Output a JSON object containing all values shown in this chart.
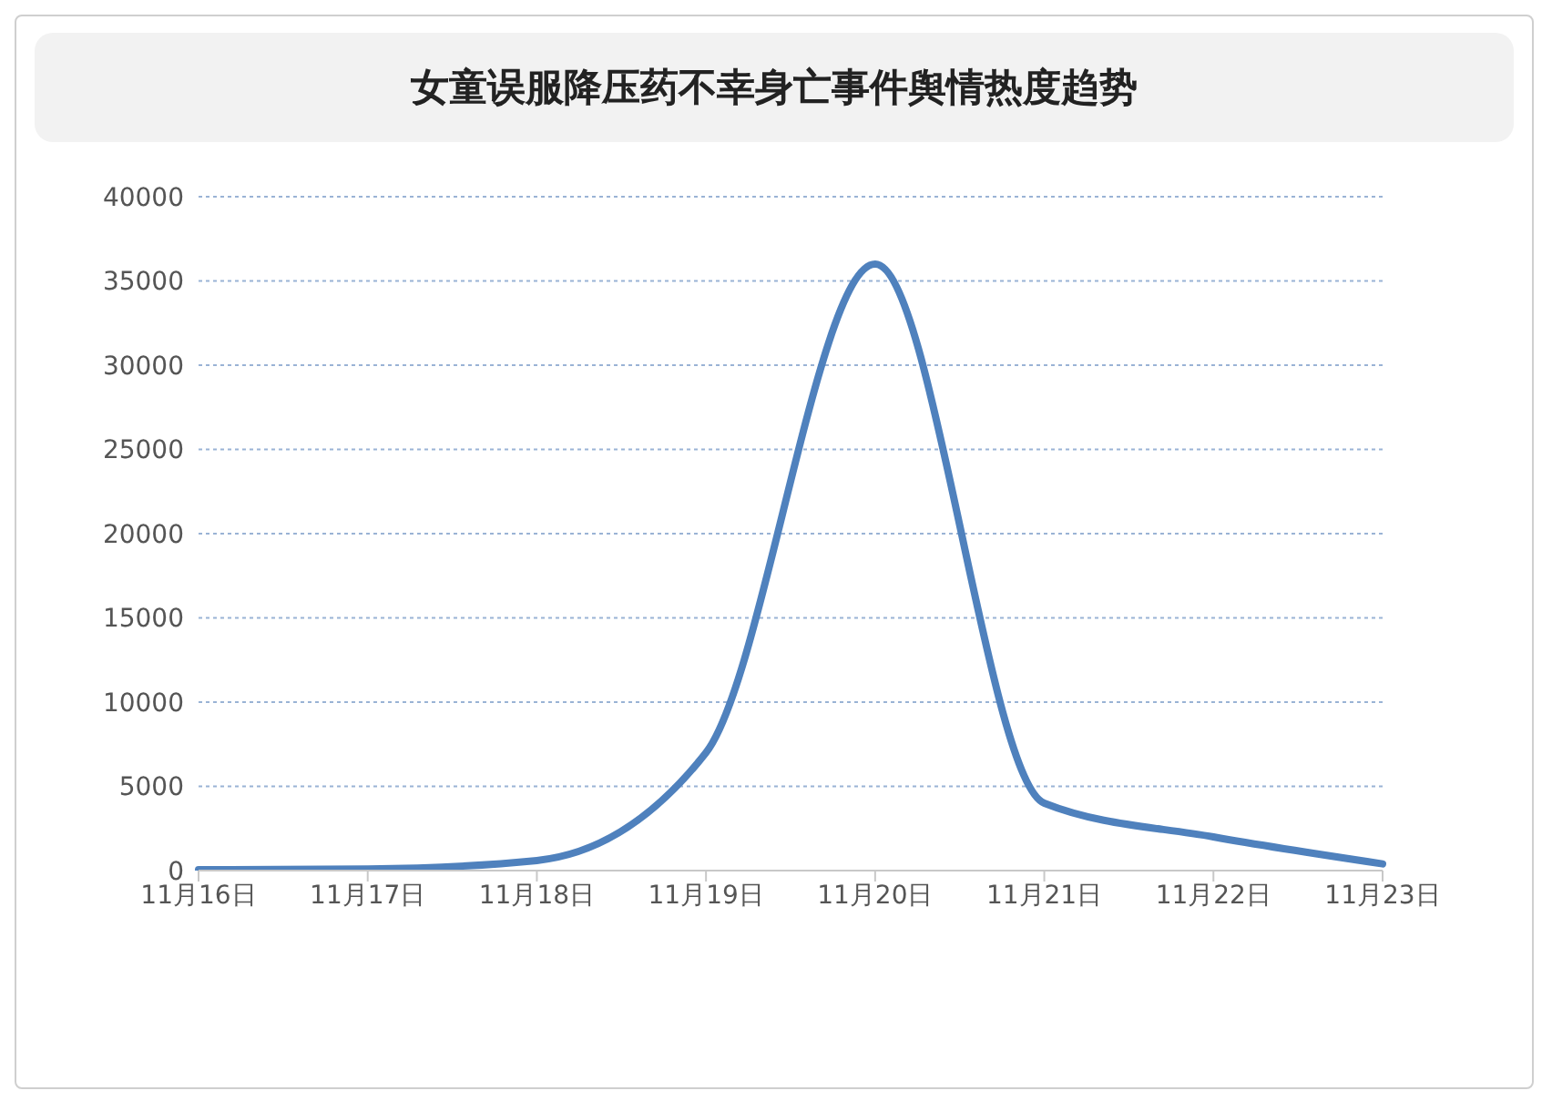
{
  "chart_data": {
    "type": "line",
    "title": "女童误服降压药不幸身亡事件舆情热度趋势",
    "categories": [
      "11月16日",
      "11月17日",
      "11月18日",
      "11月19日",
      "11月20日",
      "11月21日",
      "11月22日",
      "11月23日"
    ],
    "series": [
      {
        "color": "#4f81bd",
        "values": [
          50,
          100,
          600,
          7000,
          36000,
          4000,
          2000,
          400
        ]
      }
    ],
    "ylim": [
      0,
      40000
    ],
    "yticks": [
      0,
      5000,
      10000,
      15000,
      20000,
      25000,
      30000,
      35000,
      40000
    ],
    "grid": "y",
    "legend": false,
    "marker": "none",
    "line_style": "solid"
  }
}
